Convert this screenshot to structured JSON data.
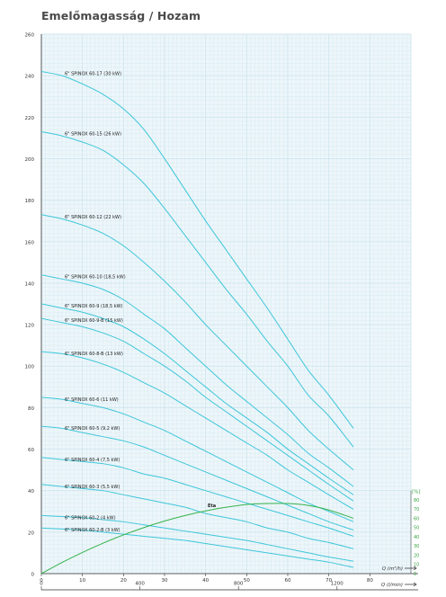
{
  "title": "Emelőmagasság / Hozam",
  "colors": {
    "curve": "#3ec6da",
    "efficiency": "#35b24a",
    "grid": "#cfe6ee",
    "plot_bg": "#edf6fa",
    "axis": "#333333"
  },
  "chart_data": [
    {
      "type": "line",
      "title": "Emelőmagasság / Hozam",
      "x_unit_label": "Q (m³/h)",
      "secondary_x_unit_label": "Q (l/min)",
      "secondary_x_ticks": [
        0,
        400,
        800,
        1200
      ],
      "x_ticks": [
        0,
        10,
        20,
        30,
        40,
        50,
        60,
        70,
        80
      ],
      "y_ticks": [
        0,
        20,
        40,
        60,
        80,
        100,
        120,
        140,
        160,
        180,
        200,
        220,
        240,
        260
      ],
      "xlim": [
        0,
        90
      ],
      "ylim": [
        0,
        260
      ],
      "grid": true,
      "series": [
        {
          "name": "6\" SPINOX 60-17 (30 kW)",
          "x": [
            0,
            5,
            10,
            15,
            20,
            25,
            30,
            35,
            40,
            45,
            50,
            55,
            60,
            65,
            70,
            76
          ],
          "values": [
            242,
            240,
            236,
            231,
            224,
            214,
            200,
            185,
            170,
            156,
            142,
            128,
            113,
            98,
            86,
            70
          ]
        },
        {
          "name": "6\" SPINOX 60-15 (26 kW)",
          "x": [
            0,
            5,
            10,
            15,
            20,
            25,
            30,
            35,
            40,
            45,
            50,
            55,
            60,
            65,
            70,
            76
          ],
          "values": [
            213,
            211,
            208,
            204,
            197,
            188,
            176,
            163,
            150,
            137,
            125,
            112,
            100,
            86,
            76,
            61
          ]
        },
        {
          "name": "6\" SPINOX 60-12 (22 kW)",
          "x": [
            0,
            5,
            10,
            15,
            20,
            25,
            30,
            35,
            40,
            45,
            50,
            55,
            60,
            65,
            70,
            76
          ],
          "values": [
            173,
            171,
            168,
            164,
            158,
            150,
            141,
            131,
            120,
            110,
            100,
            90,
            80,
            69,
            60,
            50
          ]
        },
        {
          "name": "6\" SPINOX 60-10 (18,5 kW)",
          "x": [
            0,
            5,
            10,
            15,
            20,
            25,
            30,
            35,
            40,
            45,
            50,
            55,
            60,
            65,
            70,
            76
          ],
          "values": [
            144,
            142,
            140,
            137,
            132,
            125,
            118,
            109,
            100,
            91,
            83,
            75,
            67,
            58,
            51,
            42
          ]
        },
        {
          "name": "6\" SPINOX 60-9 (18,5 kW)",
          "x": [
            0,
            5,
            10,
            15,
            20,
            25,
            30,
            35,
            40,
            45,
            50,
            55,
            60,
            65,
            70,
            76
          ],
          "values": [
            130,
            128,
            126,
            123,
            119,
            113,
            106,
            98,
            90,
            82,
            75,
            68,
            60,
            53,
            46,
            38
          ]
        },
        {
          "name": "6\" SPINOX 60-9-B (15 kW)",
          "x": [
            0,
            5,
            10,
            15,
            20,
            25,
            30,
            35,
            40,
            45,
            50,
            55,
            60,
            65,
            70,
            76
          ],
          "values": [
            123,
            121,
            119,
            116,
            112,
            106,
            100,
            93,
            85,
            78,
            71,
            64,
            57,
            50,
            43,
            35
          ]
        },
        {
          "name": "6\" SPINOX 60-8-B (13 kW)",
          "x": [
            0,
            5,
            10,
            15,
            20,
            25,
            30,
            35,
            40,
            45,
            50,
            55,
            60,
            65,
            70,
            76
          ],
          "values": [
            107,
            106,
            104,
            101,
            97,
            92,
            87,
            81,
            75,
            69,
            63,
            57,
            50,
            44,
            38,
            31
          ]
        },
        {
          "name": "6\" SPINOX 60-6 (11 kW)",
          "x": [
            0,
            5,
            10,
            15,
            20,
            25,
            30,
            35,
            40,
            45,
            50,
            55,
            60,
            65,
            70,
            76
          ],
          "values": [
            85,
            84,
            82,
            80,
            77,
            73,
            69,
            64,
            59,
            54,
            49,
            44,
            39,
            34,
            30,
            25
          ]
        },
        {
          "name": "6\" SPINOX 60-5 (9,2 kW)",
          "x": [
            0,
            5,
            10,
            15,
            20,
            25,
            30,
            35,
            40,
            45,
            50,
            55,
            60,
            65,
            70,
            76
          ],
          "values": [
            71,
            70,
            68,
            66,
            64,
            61,
            57,
            53,
            49,
            45,
            41,
            37,
            33,
            29,
            25,
            21
          ]
        },
        {
          "name": "6\" SPINOX 60-4 (7,5 kW)",
          "x": [
            0,
            5,
            10,
            15,
            20,
            25,
            30,
            35,
            40,
            45,
            50,
            55,
            60,
            65,
            70,
            76
          ],
          "values": [
            56,
            55,
            54,
            53,
            51,
            48,
            46,
            43,
            40,
            37,
            34,
            31,
            28,
            25,
            22,
            18
          ]
        },
        {
          "name": "6\" SPINOX 60-3 (5,5 kW)",
          "x": [
            0,
            5,
            10,
            15,
            20,
            25,
            30,
            35,
            40,
            45,
            50,
            55,
            60,
            65,
            70,
            76
          ],
          "values": [
            43,
            42,
            41,
            40,
            38,
            36,
            34,
            32,
            29,
            27,
            25,
            22,
            20,
            17,
            15,
            12
          ]
        },
        {
          "name": "6\" SPINOX 60-2 (4 kW)",
          "x": [
            0,
            5,
            10,
            15,
            20,
            25,
            30,
            35,
            40,
            45,
            50,
            55,
            60,
            65,
            70,
            76
          ],
          "values": [
            28,
            27.5,
            27,
            26,
            25,
            23.5,
            22,
            20.5,
            19,
            17.5,
            16,
            14,
            12,
            10,
            8,
            6
          ]
        },
        {
          "name": "6\" SPINOX 60-2-B (3 kW)",
          "x": [
            0,
            5,
            10,
            15,
            20,
            25,
            30,
            35,
            40,
            45,
            50,
            55,
            60,
            65,
            70,
            76
          ],
          "values": [
            22,
            21.5,
            21,
            20,
            19,
            18,
            17,
            16,
            14.5,
            13,
            11.5,
            10,
            8.5,
            7,
            5.5,
            3
          ]
        }
      ]
    },
    {
      "type": "line",
      "secondary_y_unit_label": "[%]",
      "secondary_y_ticks": [
        0,
        10,
        20,
        30,
        40,
        50,
        60,
        70,
        80
      ],
      "secondary_ylim": [
        0,
        90
      ],
      "series": [
        {
          "name": "Eta",
          "x": [
            0,
            5,
            10,
            15,
            20,
            25,
            30,
            35,
            40,
            45,
            50,
            55,
            60,
            65,
            70,
            76
          ],
          "values": [
            0,
            12,
            23,
            33,
            42,
            50,
            57,
            63,
            68,
            72,
            75,
            76,
            76,
            74,
            69,
            60
          ]
        }
      ]
    }
  ]
}
